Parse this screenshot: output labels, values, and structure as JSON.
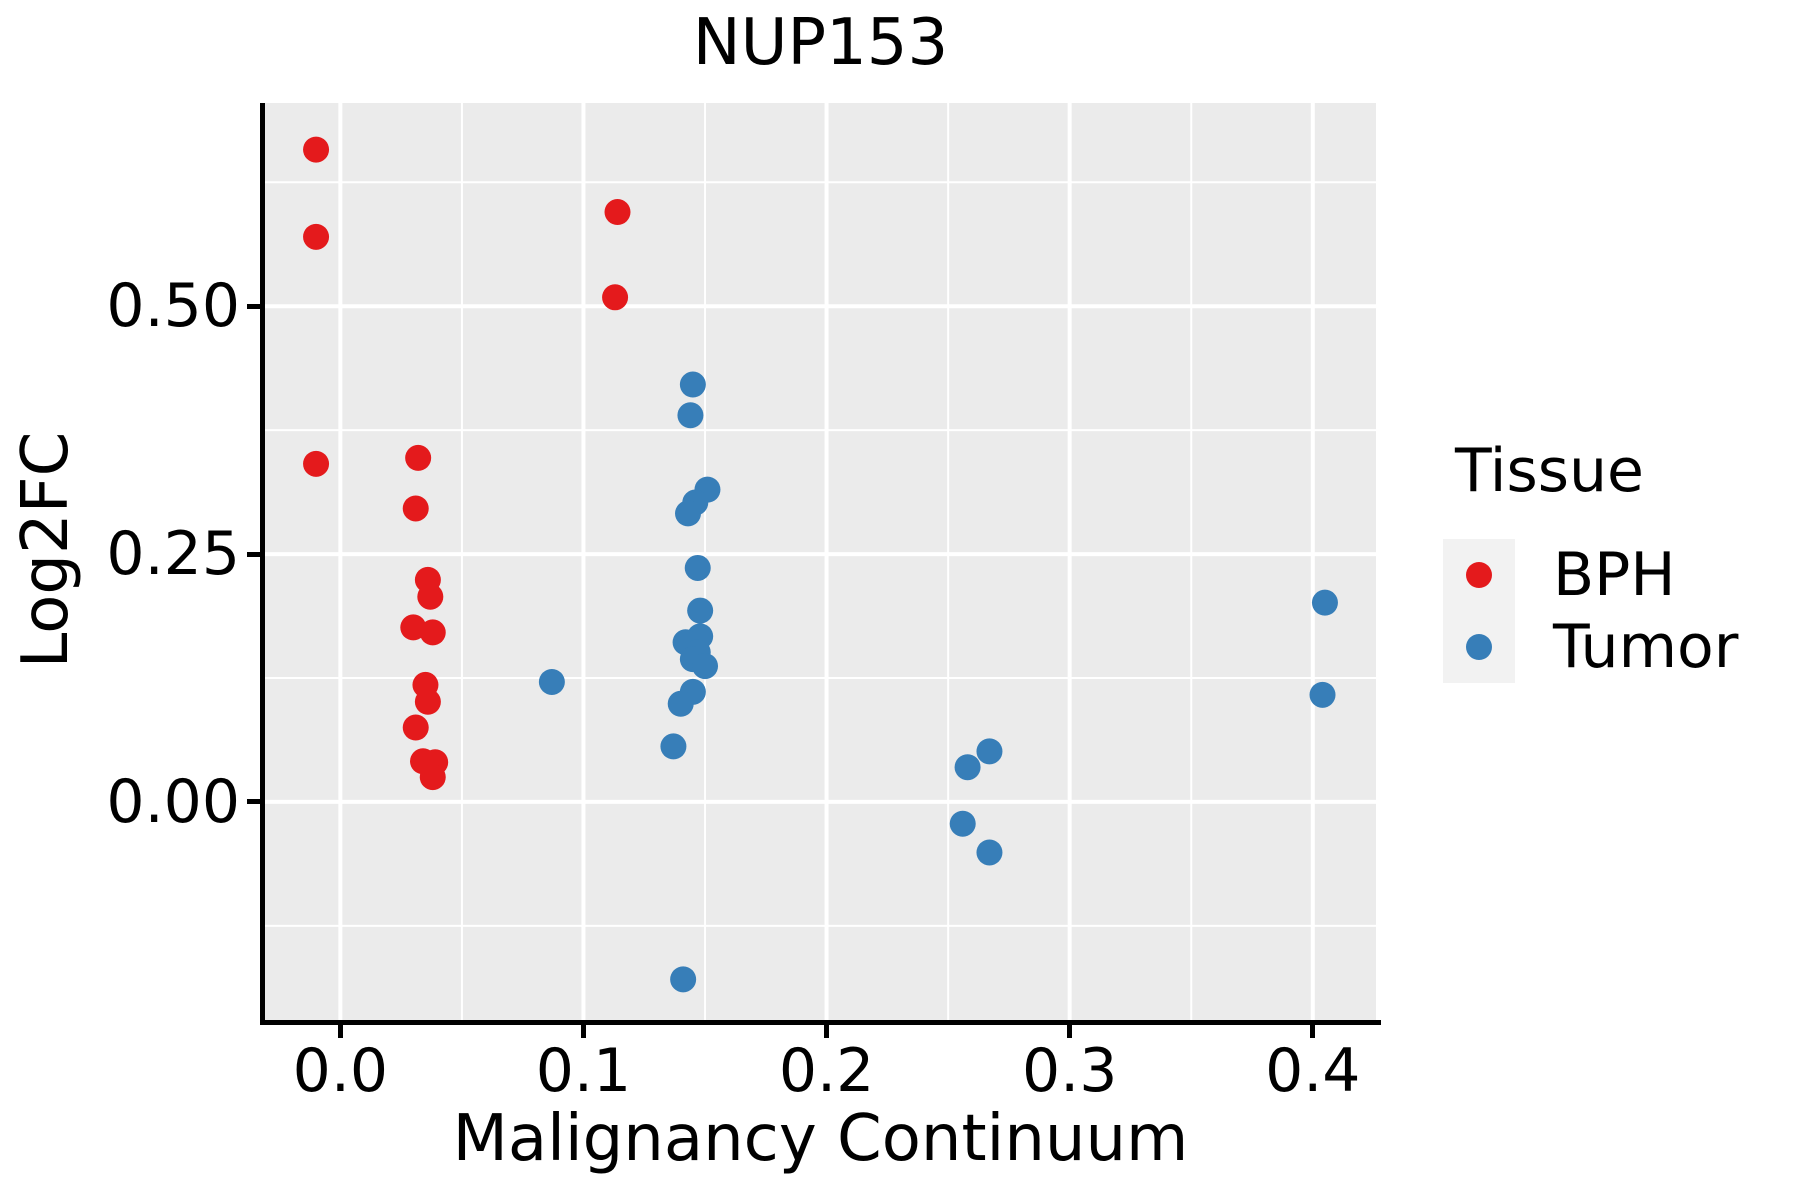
{
  "title": "NUP153",
  "axes": {
    "x_label": "Malignancy Continuum",
    "y_label": "Log2FC",
    "x_tick_labels": [
      "0.0",
      "0.1",
      "0.2",
      "0.3",
      "0.4"
    ],
    "y_tick_labels": [
      "0.50",
      "0.25",
      "0.00"
    ]
  },
  "legend": {
    "title": "Tissue",
    "items": [
      {
        "label": "BPH",
        "color": "#E41A1C"
      },
      {
        "label": "Tumor",
        "color": "#377EB8"
      }
    ]
  },
  "colors": {
    "panel_background": "#EBEBEB",
    "gridline": "#FFFFFF",
    "axis_line": "#000000",
    "legend_key_background": "#F2F2F2"
  },
  "chart_data": {
    "type": "scatter",
    "title": "NUP153",
    "xlabel": "Malignancy Continuum",
    "ylabel": "Log2FC",
    "xlim": [
      -0.031,
      0.426
    ],
    "ylim": [
      -0.22,
      0.705
    ],
    "x_major_ticks": [
      0.0,
      0.1,
      0.2,
      0.3,
      0.4
    ],
    "x_minor_ticks": [
      0.05,
      0.15,
      0.25,
      0.35
    ],
    "y_major_ticks": [
      0.5,
      0.25,
      0.0
    ],
    "y_minor_ticks": [
      0.625,
      0.375,
      0.125,
      -0.125
    ],
    "grid": true,
    "legend_position": "right",
    "series": [
      {
        "name": "BPH",
        "color": "#E41A1C",
        "points": [
          [
            -0.01,
            0.658
          ],
          [
            -0.01,
            0.57
          ],
          [
            -0.01,
            0.341
          ],
          [
            0.114,
            0.595
          ],
          [
            0.113,
            0.509
          ],
          [
            0.032,
            0.347
          ],
          [
            0.031,
            0.296
          ],
          [
            0.036,
            0.224
          ],
          [
            0.037,
            0.207
          ],
          [
            0.03,
            0.176
          ],
          [
            0.038,
            0.171
          ],
          [
            0.035,
            0.118
          ],
          [
            0.036,
            0.101
          ],
          [
            0.031,
            0.075
          ],
          [
            0.034,
            0.041
          ],
          [
            0.039,
            0.04
          ],
          [
            0.038,
            0.025
          ]
        ]
      },
      {
        "name": "Tumor",
        "color": "#377EB8",
        "points": [
          [
            0.087,
            0.121
          ],
          [
            0.145,
            0.421
          ],
          [
            0.144,
            0.39
          ],
          [
            0.151,
            0.315
          ],
          [
            0.146,
            0.302
          ],
          [
            0.143,
            0.291
          ],
          [
            0.147,
            0.236
          ],
          [
            0.148,
            0.193
          ],
          [
            0.148,
            0.167
          ],
          [
            0.142,
            0.161
          ],
          [
            0.147,
            0.151
          ],
          [
            0.145,
            0.144
          ],
          [
            0.15,
            0.137
          ],
          [
            0.145,
            0.111
          ],
          [
            0.14,
            0.099
          ],
          [
            0.137,
            0.056
          ],
          [
            0.141,
            -0.179
          ],
          [
            0.258,
            0.035
          ],
          [
            0.267,
            0.051
          ],
          [
            0.256,
            -0.022
          ],
          [
            0.267,
            -0.051
          ],
          [
            0.405,
            0.201
          ],
          [
            0.404,
            0.108
          ]
        ]
      }
    ]
  }
}
